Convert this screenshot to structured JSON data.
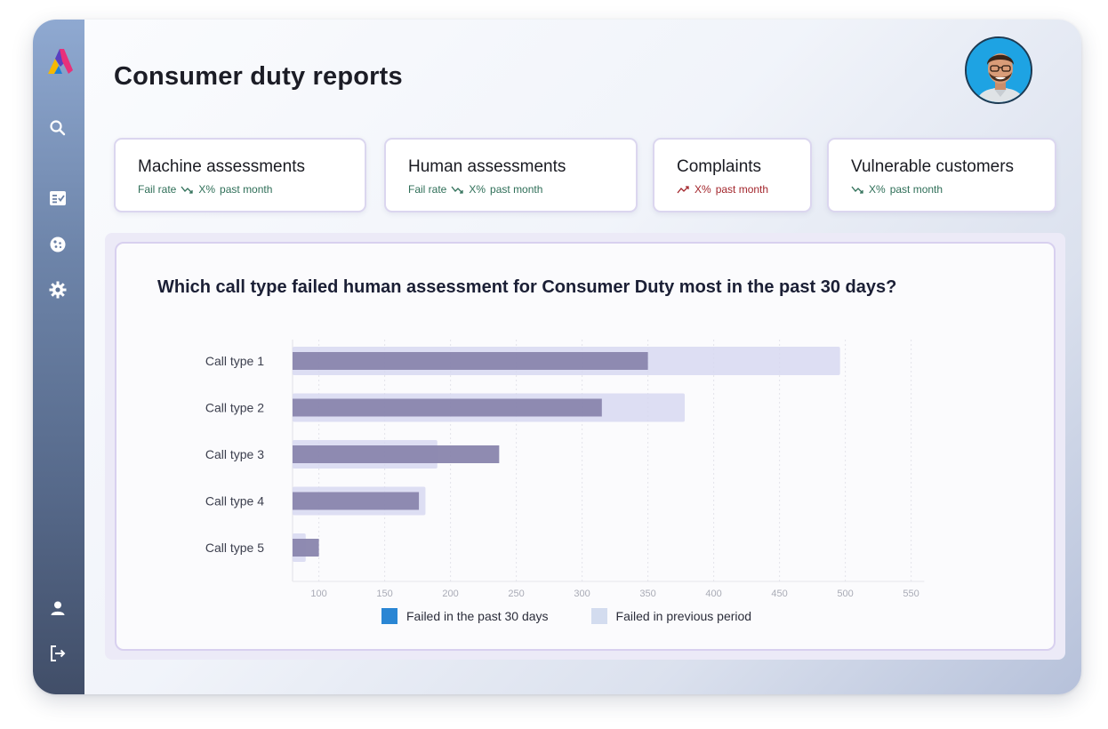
{
  "page": {
    "title": "Consumer duty reports"
  },
  "sidebar": {
    "top_icons": [
      "logo-icon",
      "search-icon",
      "checklist-icon",
      "cookie-icon",
      "gear-icon"
    ],
    "bottom_icons": [
      "user-icon",
      "logout-icon"
    ]
  },
  "cards": [
    {
      "title": "Machine assessments",
      "prefix": "Fail rate",
      "value": "X%",
      "suffix": "past month",
      "trend": "down"
    },
    {
      "title": "Human assessments",
      "prefix": "Fail rate",
      "value": "X%",
      "suffix": "past month",
      "trend": "down"
    },
    {
      "title": "Complaints",
      "prefix": "",
      "value": "X%",
      "suffix": "past month",
      "trend": "up"
    },
    {
      "title": "Vulnerable customers",
      "prefix": "",
      "value": "X%",
      "suffix": "past month",
      "trend": "down"
    }
  ],
  "colors": {
    "trend_down": "#2f6f58",
    "trend_up": "#a3262c",
    "series_current": "#8985ad",
    "series_previous": "#d7d8f1",
    "legend_current": "#2a86d4",
    "legend_previous": "#d3dcef"
  },
  "chart_data": {
    "type": "bar",
    "orientation": "horizontal",
    "title": "Which call type failed human assessment for Consumer Duty most in the past 30 days?",
    "categories": [
      "Call type 1",
      "Call type 2",
      "Call type 3",
      "Call type 4",
      "Call type 5"
    ],
    "series": [
      {
        "name": "Failed in the past 30 days",
        "values": [
          350,
          315,
          237,
          176,
          100
        ]
      },
      {
        "name": "Failed in previous period",
        "values": [
          496,
          378,
          190,
          181,
          90
        ]
      }
    ],
    "xticks": [
      100,
      150,
      200,
      250,
      300,
      350,
      400,
      450,
      500,
      550
    ],
    "xlim": [
      80,
      560
    ],
    "grid": true,
    "legend": "bottom"
  }
}
